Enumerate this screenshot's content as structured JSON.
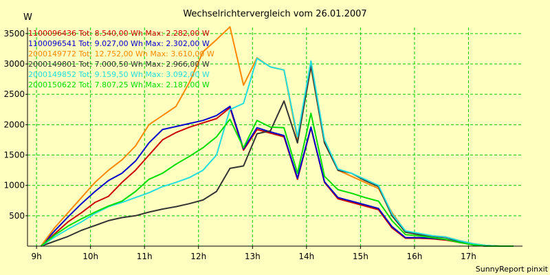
{
  "chart_data": {
    "type": "line",
    "title": "Wechselrichtervergleich vom 26.01.2007",
    "ylabel": "W",
    "footer": "SunnyReport pinxit",
    "xlim": [
      8.833,
      18.0
    ],
    "ylim": [
      0,
      3600
    ],
    "y_ticks": [
      500,
      1000,
      1500,
      2000,
      2500,
      3000,
      3500
    ],
    "x_tick_values": [
      9,
      10,
      11,
      12,
      13,
      14,
      15,
      16,
      17
    ],
    "x_tick_labels": [
      "9h",
      "10h",
      "11h",
      "12h",
      "13h",
      "14h",
      "15h",
      "16h",
      "17h"
    ],
    "grid": true,
    "colors": {
      "background": "#ffffc0",
      "plot_background": "#ffffc0",
      "grid": "#00cc00"
    },
    "x": [
      9.083,
      9.333,
      9.583,
      9.833,
      10.083,
      10.333,
      10.583,
      10.833,
      11.083,
      11.333,
      11.583,
      11.833,
      12.083,
      12.333,
      12.583,
      12.833,
      13.083,
      13.333,
      13.583,
      13.833,
      14.083,
      14.333,
      14.583,
      14.833,
      15.083,
      15.333,
      15.583,
      15.833,
      16.083,
      16.333,
      16.583,
      16.833,
      17.083,
      17.333,
      17.583,
      17.833
    ],
    "series": [
      {
        "name": "1100096436 Tot: 8.540,00 Wh Max: 2.282,00 W",
        "color": "#cc0000",
        "values": [
          0,
          200,
          400,
          550,
          720,
          820,
          1050,
          1250,
          1500,
          1750,
          1870,
          1960,
          2030,
          2100,
          2280,
          1580,
          1920,
          1860,
          1800,
          1100,
          1950,
          1050,
          780,
          720,
          660,
          600,
          300,
          130,
          130,
          120,
          100,
          60,
          20,
          0,
          0,
          0
        ]
      },
      {
        "name": "1100096541 Tot: 9.027,00 Wh Max: 2.302,00 W",
        "color": "#0000cc",
        "values": [
          0,
          250,
          480,
          700,
          900,
          1080,
          1200,
          1400,
          1700,
          1920,
          1970,
          2020,
          2070,
          2150,
          2302,
          1600,
          1950,
          1880,
          1820,
          1120,
          1960,
          1060,
          800,
          740,
          680,
          620,
          320,
          140,
          140,
          130,
          110,
          70,
          20,
          0,
          0,
          0
        ]
      },
      {
        "name": "2000149772 Tot: 12.752,00 Wh Max: 3.610,00 W",
        "color": "#ff8800",
        "values": [
          0,
          300,
          550,
          800,
          1050,
          1250,
          1420,
          1650,
          2000,
          2150,
          2300,
          2700,
          3200,
          3400,
          3610,
          2650,
          3100,
          2950,
          2900,
          1750,
          2950,
          1700,
          1250,
          1150,
          1050,
          950,
          550,
          240,
          200,
          170,
          150,
          90,
          40,
          10,
          0,
          0
        ]
      },
      {
        "name": "2000149801 Tot: 7.000,50 Wh Max: 2.966,00 W",
        "color": "#333333",
        "values": [
          0,
          80,
          160,
          260,
          340,
          420,
          470,
          500,
          560,
          610,
          650,
          700,
          760,
          900,
          1280,
          1320,
          1850,
          1900,
          2390,
          1700,
          2966,
          1700,
          1250,
          1200,
          1080,
          980,
          500,
          230,
          190,
          160,
          140,
          80,
          30,
          10,
          0,
          0
        ]
      },
      {
        "name": "2000149852 Tot: 9.159,50 Wh Max: 3.092,00 W",
        "color": "#22dddd",
        "values": [
          0,
          150,
          280,
          400,
          540,
          650,
          720,
          800,
          880,
          980,
          1050,
          1130,
          1250,
          1500,
          2250,
          2350,
          3092,
          2950,
          2900,
          1800,
          3050,
          1750,
          1270,
          1200,
          1100,
          1000,
          530,
          250,
          210,
          170,
          150,
          90,
          40,
          10,
          0,
          0
        ]
      },
      {
        "name": "2000150622 Tot: 7.807,25 Wh Max: 2.187,00 W",
        "color": "#00dd00",
        "values": [
          0,
          180,
          330,
          450,
          560,
          660,
          740,
          900,
          1100,
          1200,
          1350,
          1480,
          1620,
          1800,
          2090,
          1620,
          2070,
          1960,
          1950,
          1200,
          2187,
          1150,
          930,
          870,
          800,
          740,
          420,
          190,
          170,
          140,
          110,
          60,
          20,
          0,
          0,
          0
        ]
      }
    ]
  }
}
